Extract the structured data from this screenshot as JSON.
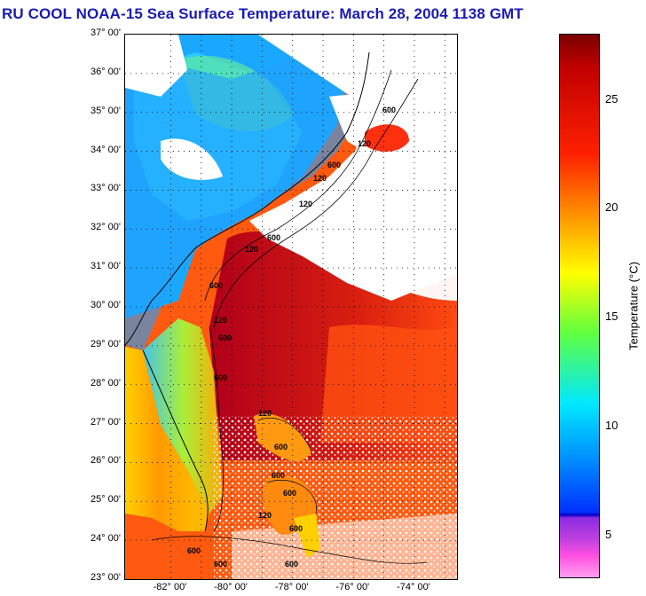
{
  "title": "RU COOL  NOAA-15  Sea Surface Temperature:  March 28, 2004 1138 GMT",
  "map": {
    "latitude_labels": [
      "37° 00'",
      "36° 00'",
      "35° 00'",
      "34° 00'",
      "33° 00'",
      "32° 00'",
      "31° 00'",
      "30° 00'",
      "29° 00'",
      "28° 00'",
      "27° 00'",
      "26° 00'",
      "25° 00'",
      "24° 00'",
      "23° 00'"
    ],
    "longitude_labels": [
      "-82° 00'",
      "-80° 00'",
      "-78° 00'",
      "-76° 00'",
      "-74° 00'"
    ],
    "lat_range": [
      23,
      37
    ],
    "lon_range": [
      -83.5,
      -72.6
    ],
    "isobath_labels": [
      "600",
      "120",
      "600",
      "120",
      "120",
      "600",
      "120",
      "600",
      "120",
      "600",
      "600",
      "120",
      "600",
      "600",
      "600",
      "600",
      "120",
      "600",
      "600",
      "600"
    ]
  },
  "colorbar": {
    "label": "Temperature (°C)",
    "ticks": [
      "25",
      "20",
      "15",
      "10",
      "5"
    ],
    "tick_values": [
      25,
      20,
      15,
      10,
      5
    ],
    "range": [
      3,
      28
    ],
    "colors": {
      "max": "#7a0000",
      "red": "#ff2000",
      "orange": "#ff9000",
      "yellow": "#ffff00",
      "green": "#60ff40",
      "cyan": "#00e8ff",
      "blue": "#0030ff",
      "purple": "#8a2be2",
      "pink": "#ff4fe0",
      "min": "#ffa0f0",
      "land": "#ffffff",
      "cloud": "#ffffff"
    }
  }
}
